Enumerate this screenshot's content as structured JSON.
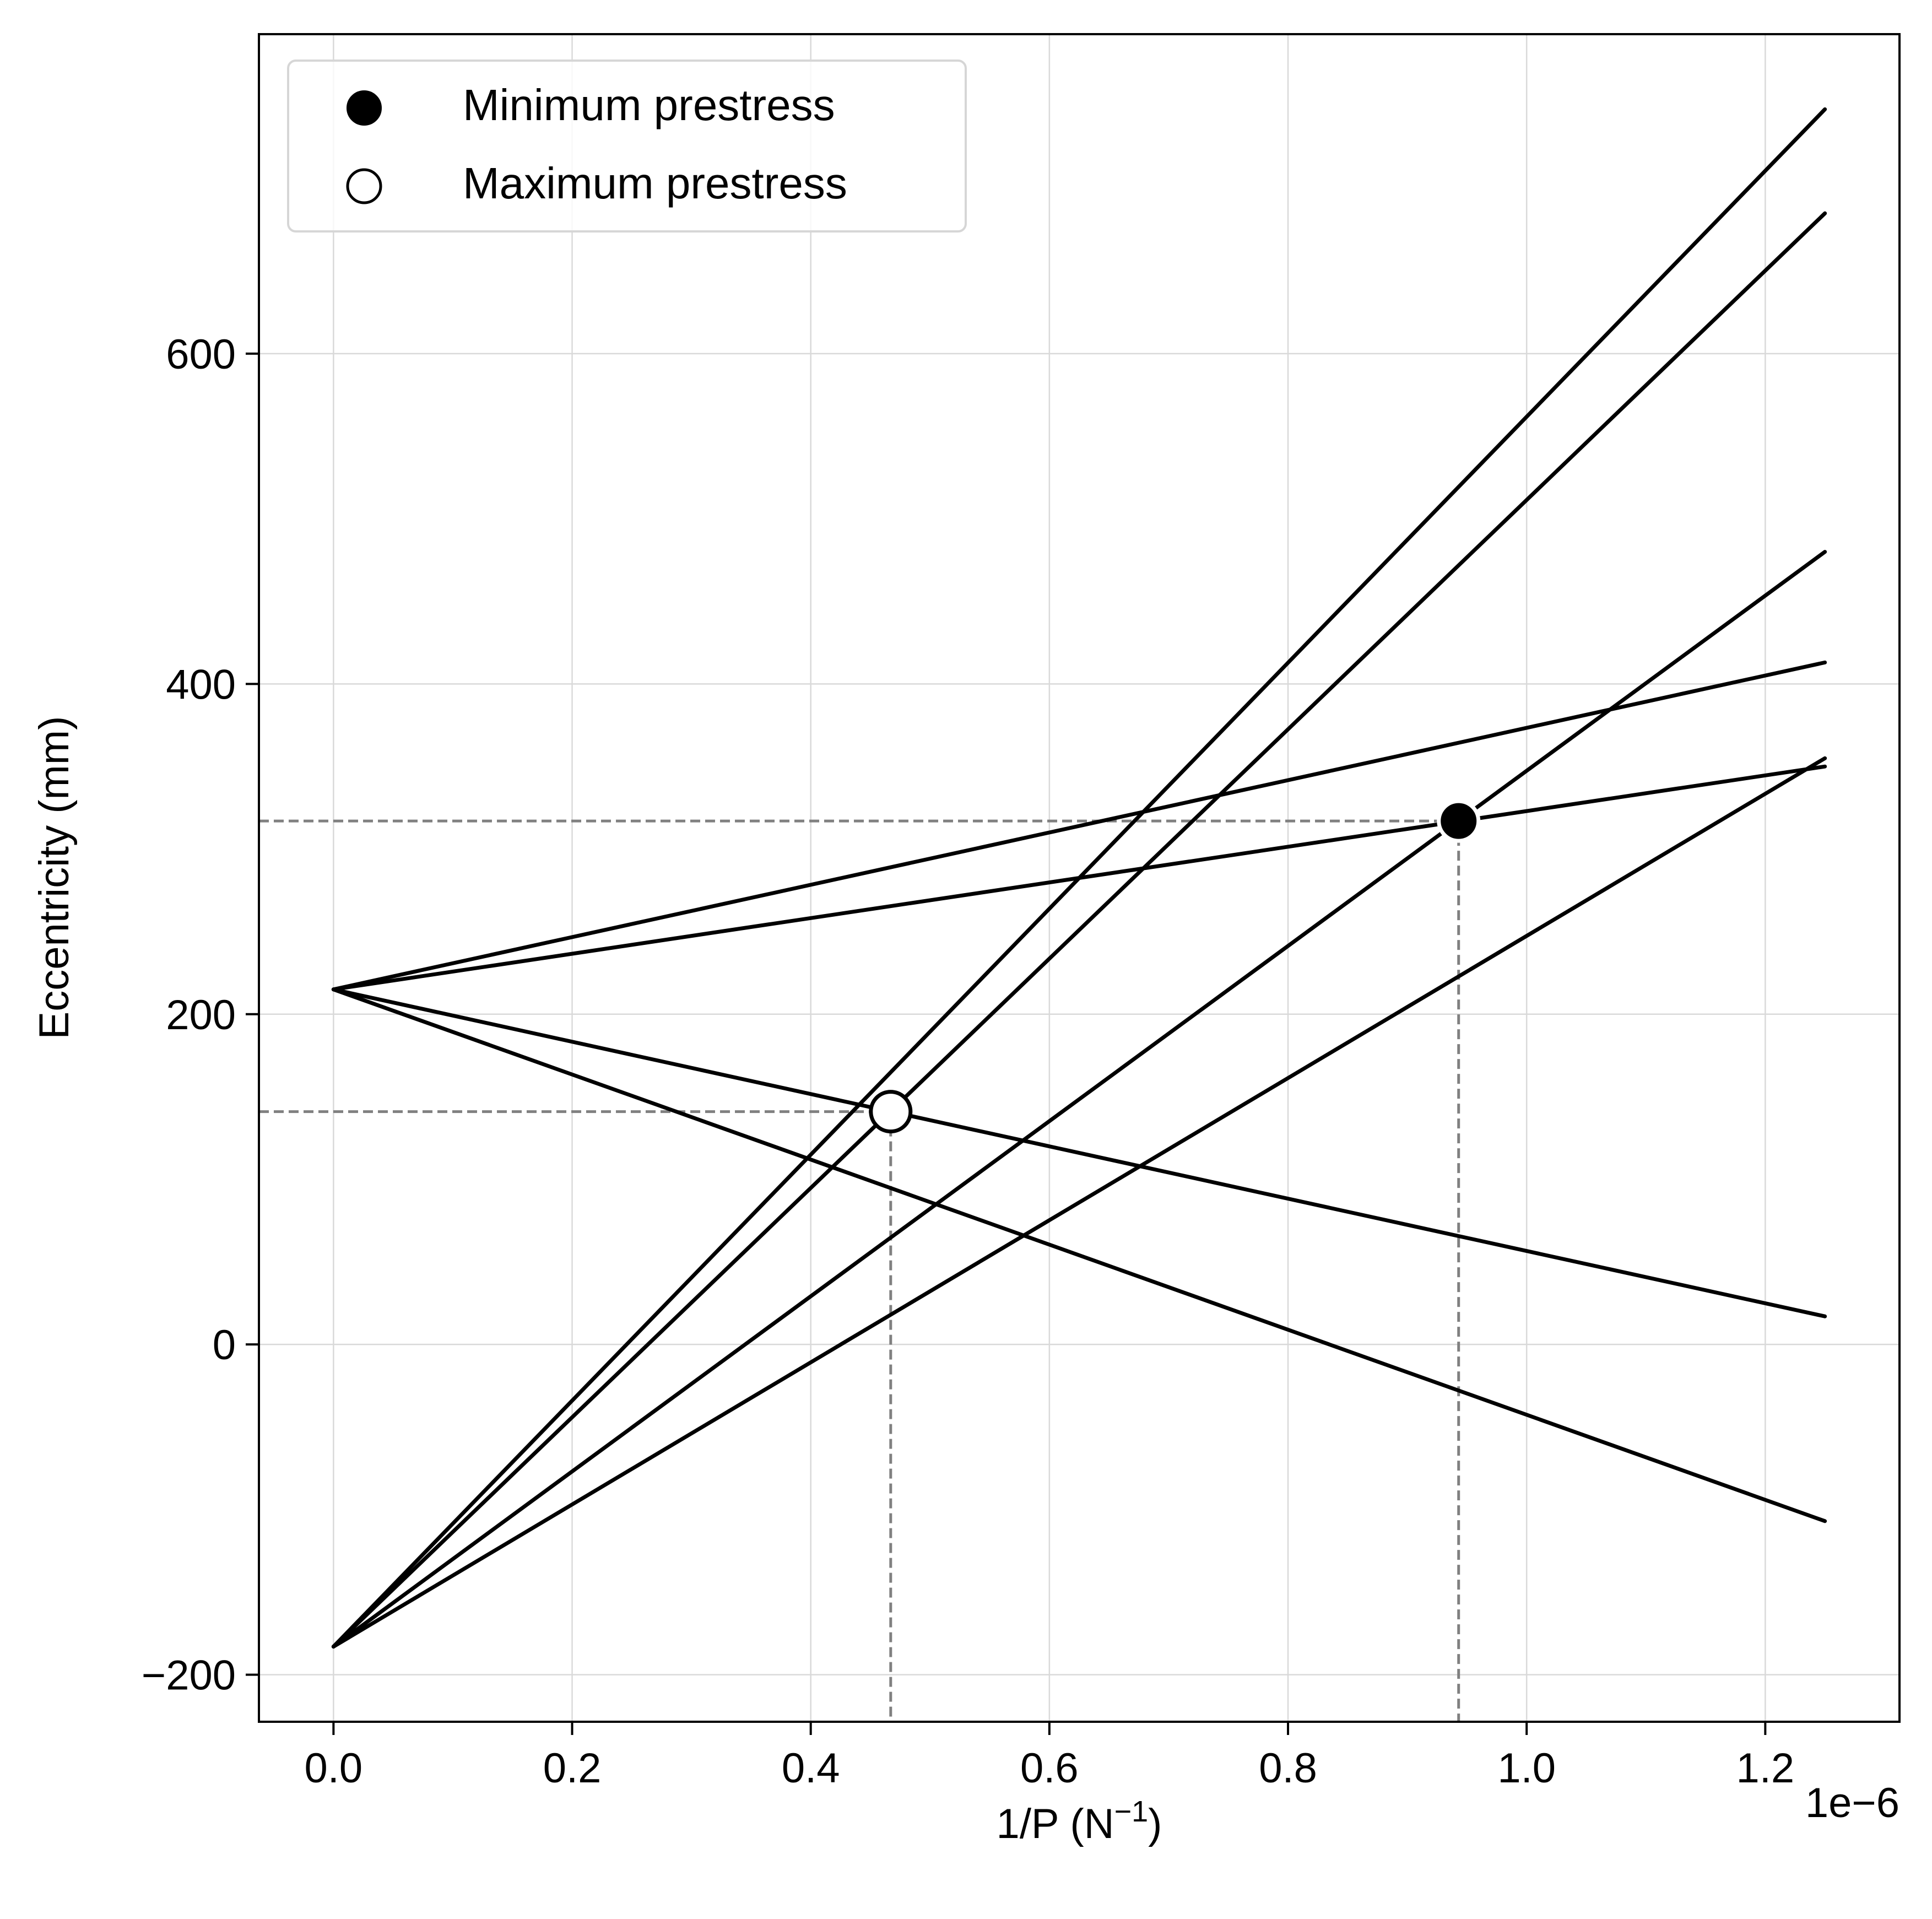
{
  "chart_data": {
    "type": "line",
    "title": "",
    "xlabel": "1/P (N",
    "xlabel_sup": "−1",
    "xlabel_close": ")",
    "ylabel": "Eccentricity (mm)",
    "x_offset_text": "1e−6",
    "x_scale": 1e-06,
    "xlim": [
      -0.0625,
      1.3125
    ],
    "ylim": [
      -228.5,
      793.5
    ],
    "xticks": [
      0.0,
      0.2,
      0.4,
      0.6,
      0.8,
      1.0,
      1.2
    ],
    "xtick_labels": [
      "0.0",
      "0.2",
      "0.4",
      "0.6",
      "0.8",
      "1.0",
      "1.2"
    ],
    "yticks": [
      -200,
      0,
      200,
      400,
      600
    ],
    "ytick_labels": [
      "−200",
      "0",
      "200",
      "400",
      "600"
    ],
    "grid": true,
    "series": [
      {
        "x": [
          0.0,
          1.25
        ],
        "y": [
          -183,
          748
        ]
      },
      {
        "x": [
          0.0,
          1.25
        ],
        "y": [
          -183,
          685
        ]
      },
      {
        "x": [
          0.0,
          1.25
        ],
        "y": [
          -183,
          480
        ]
      },
      {
        "x": [
          0.0,
          1.25
        ],
        "y": [
          -183,
          355
        ]
      },
      {
        "x": [
          0.0,
          1.25
        ],
        "y": [
          215,
          413
        ]
      },
      {
        "x": [
          0.0,
          1.25
        ],
        "y": [
          215,
          350
        ]
      },
      {
        "x": [
          0.0,
          1.25
        ],
        "y": [
          215,
          17
        ]
      },
      {
        "x": [
          0.0,
          1.25
        ],
        "y": [
          215,
          -107
        ]
      }
    ],
    "points": [
      {
        "name": "Minimum prestress",
        "x": 0.943,
        "y": 317,
        "marker": "filled"
      },
      {
        "name": "Maximum prestress",
        "x": 0.467,
        "y": 141,
        "marker": "open"
      }
    ],
    "legend": {
      "placement": "top-left",
      "entries": [
        "Minimum prestress",
        "Maximum prestress"
      ]
    },
    "colors": {
      "line": "#000000",
      "grid": "#d9d9d9",
      "guide": "#808080",
      "background": "#ffffff"
    }
  }
}
